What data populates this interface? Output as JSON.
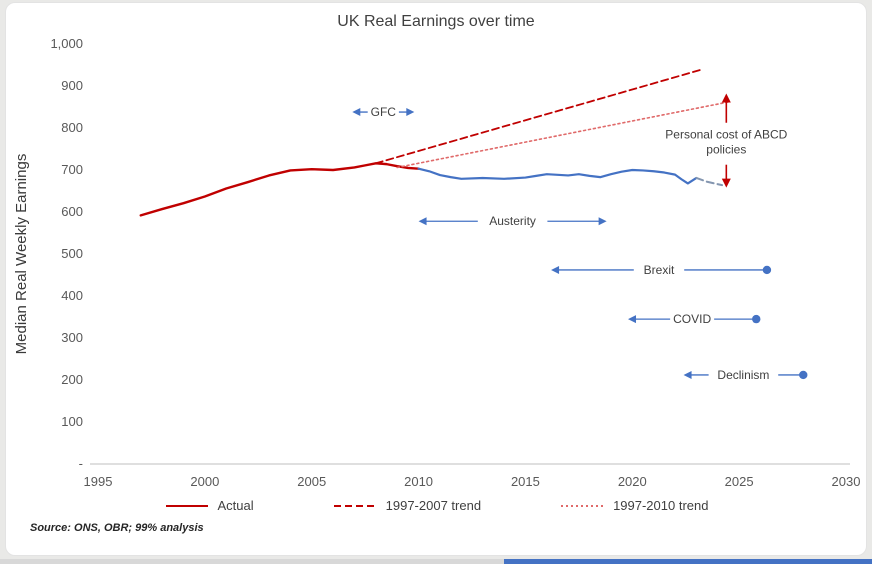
{
  "page": {
    "source_note": "Source: ONS, OBR; 99% analysis"
  },
  "chart_data": {
    "type": "line",
    "title": "UK Real Earnings over time",
    "xlabel": "",
    "ylabel": "Median Real Weekly Earnings",
    "xlim": [
      1995,
      2030
    ],
    "ylim": [
      0,
      1000
    ],
    "x_ticks": [
      1995,
      2000,
      2005,
      2010,
      2015,
      2020,
      2025,
      2030
    ],
    "y_ticks": [
      0,
      100,
      200,
      300,
      400,
      500,
      600,
      700,
      800,
      900,
      1000
    ],
    "y_tick_labels": [
      "-",
      "100",
      "200",
      "300",
      "400",
      "500",
      "600",
      "700",
      "800",
      "900",
      "1,000"
    ],
    "grid": false,
    "legend_position": "bottom",
    "colors": {
      "actual_early": "#C00000",
      "actual_late": "#4472C4",
      "actual_projection": "#8496B0",
      "trend_1997_2007": "#C00000",
      "trend_1997_2010": "#E06A6A",
      "annotation_blue": "#4472C4",
      "annotation_red": "#C00000",
      "axis": "#BFBFBF",
      "text": "#404040"
    },
    "series": [
      {
        "name": "Actual 1997-2010 red segment",
        "style": "solid",
        "color_key": "actual_early",
        "width": 2.4,
        "x": [
          1997,
          1998,
          1999,
          2000,
          2001,
          2002,
          2003,
          2004,
          2005,
          2006,
          2007,
          2007.5,
          2008,
          2008.5,
          2009,
          2009.5,
          2010
        ],
        "values": [
          592,
          607,
          621,
          637,
          656,
          671,
          687,
          699,
          702,
          700,
          706,
          711,
          716,
          714,
          709,
          705,
          703
        ]
      },
      {
        "name": "Actual 2010-2023 blue segment",
        "style": "solid",
        "color_key": "actual_late",
        "width": 2.2,
        "x": [
          2010,
          2010.5,
          2011,
          2011.5,
          2012,
          2013,
          2014,
          2015,
          2015.5,
          2016,
          2017,
          2017.5,
          2018,
          2018.5,
          2019,
          2019.5,
          2020,
          2020.5,
          2021,
          2021.5,
          2022,
          2022.3,
          2022.6,
          2023
        ],
        "values": [
          703,
          697,
          688,
          683,
          679,
          681,
          679,
          682,
          686,
          690,
          687,
          690,
          686,
          683,
          690,
          696,
          700,
          699,
          697,
          694,
          689,
          678,
          668,
          681
        ]
      },
      {
        "name": "Actual projection tail",
        "style": "dashed",
        "color_key": "actual_projection",
        "width": 2,
        "x": [
          2023,
          2023.5,
          2024.2
        ],
        "values": [
          681,
          672,
          664
        ]
      },
      {
        "name": "1997-2007 trend",
        "style": "dashed",
        "color_key": "trend_1997_2007",
        "width": 1.8,
        "x": [
          2008,
          2023.3
        ],
        "values": [
          716,
          940
        ]
      },
      {
        "name": "1997-2010 trend",
        "style": "dotted",
        "color_key": "trend_1997_2010",
        "width": 1.6,
        "x": [
          2009,
          2024.5
        ],
        "values": [
          706,
          862
        ]
      }
    ],
    "legend": [
      {
        "label": "Actual",
        "style": "solid",
        "color_key": "actual_early"
      },
      {
        "label": "1997-2007 trend",
        "style": "dashed",
        "color_key": "trend_1997_2007"
      },
      {
        "label": "1997-2010 trend",
        "style": "dotted",
        "color_key": "trend_1997_2010"
      }
    ],
    "annotations": [
      {
        "id": "gfc",
        "label": "GFC",
        "type": "h-span",
        "y": 838,
        "x_start": 2006.9,
        "x_end": 2009.8,
        "left_cap": "arrow",
        "right_cap": "arrow"
      },
      {
        "id": "austerity",
        "label": "Austerity",
        "type": "h-span",
        "y": 578,
        "x_start": 2010.0,
        "x_end": 2018.8,
        "left_cap": "arrow",
        "right_cap": "arrow"
      },
      {
        "id": "brexit",
        "label": "Brexit",
        "type": "h-span",
        "y": 462,
        "x_start": 2016.2,
        "x_end": 2026.3,
        "left_cap": "arrow",
        "right_cap": "dot"
      },
      {
        "id": "covid",
        "label": "COVID",
        "type": "h-span",
        "y": 345,
        "x_start": 2019.8,
        "x_end": 2025.8,
        "left_cap": "arrow",
        "right_cap": "dot"
      },
      {
        "id": "declinism",
        "label": "Declinism",
        "type": "h-span",
        "y": 212,
        "x_start": 2022.4,
        "x_end": 2028.0,
        "left_cap": "arrow",
        "right_cap": "dot"
      },
      {
        "id": "policy-cost",
        "type": "v-span",
        "label_lines": [
          "Personal cost of ABCD",
          "policies"
        ],
        "x": 2024.4,
        "y_top": 882,
        "y_bottom": 658,
        "label_center": 765
      }
    ]
  }
}
